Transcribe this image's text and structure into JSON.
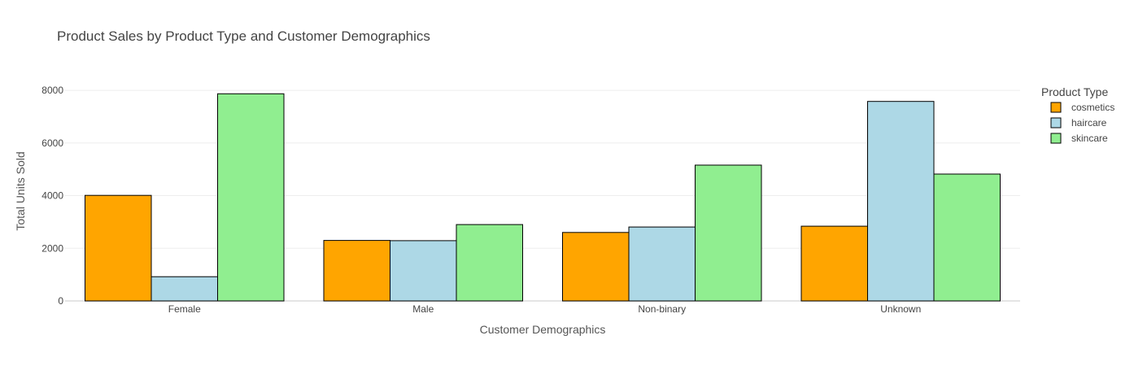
{
  "chart_data": {
    "type": "bar",
    "title": "Product Sales by Product Type and Customer Demographics",
    "xlabel": "Customer Demographics",
    "ylabel": "Total Units Sold",
    "categories": [
      "Female",
      "Male",
      "Non-binary",
      "Unknown"
    ],
    "series": [
      {
        "name": "cosmetics",
        "color": "#FFA500",
        "values": [
          4010,
          2300,
          2600,
          2840
        ]
      },
      {
        "name": "haircare",
        "color": "#ADD8E6",
        "values": [
          920,
          2290,
          2810,
          7580
        ]
      },
      {
        "name": "skincare",
        "color": "#90EE90",
        "values": [
          7870,
          2900,
          5160,
          4820
        ]
      }
    ],
    "ylim": [
      0,
      8960
    ],
    "yticks": [
      0,
      2000,
      4000,
      6000,
      8000
    ],
    "grid": true,
    "legend": {
      "title": "Product Type",
      "position": "top-right"
    }
  }
}
